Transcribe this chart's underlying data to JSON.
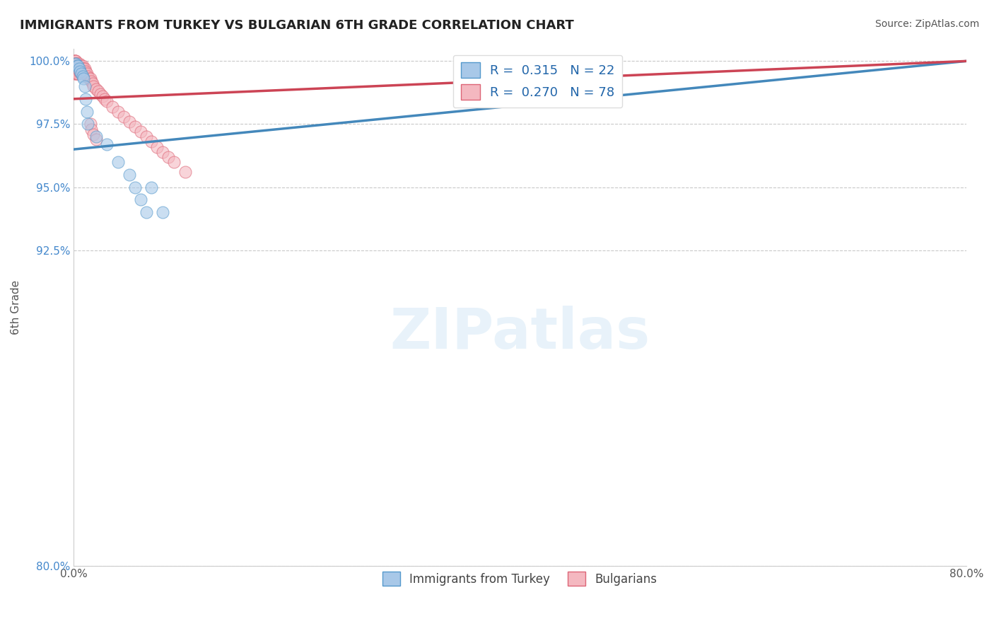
{
  "title": "IMMIGRANTS FROM TURKEY VS BULGARIAN 6TH GRADE CORRELATION CHART",
  "source": "Source: ZipAtlas.com",
  "xlabel": "",
  "ylabel": "6th Grade",
  "xlim": [
    0.0,
    0.8
  ],
  "ylim": [
    0.8,
    1.005
  ],
  "xticks": [
    0.0,
    0.2,
    0.4,
    0.6,
    0.8
  ],
  "xticklabels": [
    "0.0%",
    "",
    "",
    "",
    "80.0%"
  ],
  "yticks": [
    0.8,
    0.925,
    0.95,
    0.975,
    1.0
  ],
  "yticklabels": [
    "80.0%",
    "92.5%",
    "95.0%",
    "97.5%",
    "100.0%"
  ],
  "blue_R": 0.315,
  "blue_N": 22,
  "pink_R": 0.27,
  "pink_N": 78,
  "blue_color": "#a8c8e8",
  "pink_color": "#f4b8c0",
  "blue_edge_color": "#5599cc",
  "pink_edge_color": "#dd6677",
  "blue_line_color": "#4488bb",
  "pink_line_color": "#cc4455",
  "legend_label_blue": "Immigrants from Turkey",
  "legend_label_pink": "Bulgarians",
  "blue_line_x0": 0.0,
  "blue_line_x1": 0.8,
  "blue_line_y0": 0.965,
  "blue_line_y1": 1.0,
  "pink_line_x0": 0.0,
  "pink_line_x1": 0.8,
  "pink_line_y0": 0.985,
  "pink_line_y1": 1.0,
  "blue_scatter_x": [
    0.001,
    0.002,
    0.003,
    0.004,
    0.005,
    0.006,
    0.007,
    0.008,
    0.009,
    0.01,
    0.011,
    0.012,
    0.013,
    0.02,
    0.03,
    0.04,
    0.05,
    0.055,
    0.06,
    0.065,
    0.07,
    0.08
  ],
  "blue_scatter_y": [
    0.999,
    0.999,
    0.998,
    0.998,
    0.997,
    0.996,
    0.995,
    0.994,
    0.993,
    0.99,
    0.985,
    0.98,
    0.975,
    0.97,
    0.967,
    0.96,
    0.955,
    0.95,
    0.945,
    0.94,
    0.95,
    0.94
  ],
  "pink_scatter_x": [
    0.001,
    0.001,
    0.001,
    0.001,
    0.001,
    0.001,
    0.001,
    0.001,
    0.001,
    0.001,
    0.001,
    0.001,
    0.002,
    0.002,
    0.002,
    0.002,
    0.002,
    0.002,
    0.002,
    0.002,
    0.003,
    0.003,
    0.003,
    0.003,
    0.003,
    0.003,
    0.004,
    0.004,
    0.004,
    0.004,
    0.004,
    0.005,
    0.005,
    0.005,
    0.005,
    0.006,
    0.006,
    0.006,
    0.007,
    0.007,
    0.008,
    0.008,
    0.008,
    0.009,
    0.009,
    0.01,
    0.01,
    0.011,
    0.012,
    0.013,
    0.014,
    0.015,
    0.016,
    0.017,
    0.018,
    0.02,
    0.022,
    0.024,
    0.026,
    0.028,
    0.03,
    0.035,
    0.04,
    0.045,
    0.05,
    0.055,
    0.06,
    0.065,
    0.07,
    0.075,
    0.08,
    0.085,
    0.09,
    0.1,
    0.015,
    0.016,
    0.018,
    0.02
  ],
  "pink_scatter_y": [
    1.0,
    1.0,
    1.0,
    0.999,
    0.999,
    0.999,
    0.998,
    0.998,
    0.997,
    0.997,
    0.996,
    0.995,
    1.0,
    0.999,
    0.999,
    0.998,
    0.997,
    0.997,
    0.996,
    0.995,
    0.999,
    0.998,
    0.998,
    0.997,
    0.996,
    0.995,
    0.999,
    0.998,
    0.997,
    0.996,
    0.995,
    0.999,
    0.998,
    0.997,
    0.996,
    0.998,
    0.997,
    0.996,
    0.998,
    0.997,
    0.998,
    0.997,
    0.996,
    0.997,
    0.996,
    0.997,
    0.995,
    0.996,
    0.995,
    0.994,
    0.993,
    0.993,
    0.992,
    0.991,
    0.99,
    0.989,
    0.988,
    0.987,
    0.986,
    0.985,
    0.984,
    0.982,
    0.98,
    0.978,
    0.976,
    0.974,
    0.972,
    0.97,
    0.968,
    0.966,
    0.964,
    0.962,
    0.96,
    0.956,
    0.975,
    0.973,
    0.971,
    0.969
  ]
}
